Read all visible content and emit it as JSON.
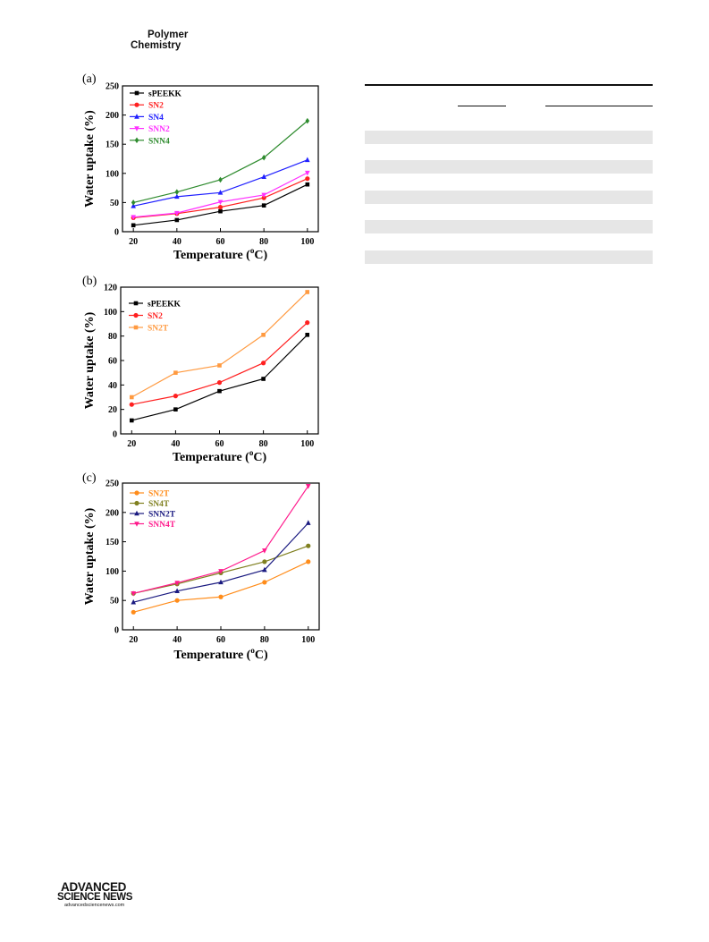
{
  "header": {
    "journal_line1": "Polymer",
    "journal_line2": "Chemistry"
  },
  "footer": {
    "publisher_line1": "ADVANCED",
    "publisher_line2": "SCIENCE NEWS",
    "publisher_url": "advancedsciencenews.com"
  },
  "chart_data": [
    {
      "panel": "(a)",
      "type": "line",
      "xlabel": "Temperature (°C)",
      "ylabel": "Water uptake (%)",
      "x": [
        20,
        40,
        60,
        80,
        100
      ],
      "xlim": [
        15,
        105
      ],
      "ylim": [
        0,
        250
      ],
      "yticks": [
        0,
        50,
        100,
        150,
        200,
        250
      ],
      "grid": false,
      "legend_position": "top-left",
      "series": [
        {
          "name": "sPEEKK",
          "color": "#000000",
          "marker": "square",
          "values": [
            11,
            20,
            35,
            45,
            81
          ]
        },
        {
          "name": "SN2",
          "color": "#ff2020",
          "marker": "circle",
          "values": [
            24,
            31,
            42,
            58,
            91
          ]
        },
        {
          "name": "SN4",
          "color": "#2020ff",
          "marker": "triangle-up",
          "values": [
            44,
            60,
            67,
            94,
            123
          ]
        },
        {
          "name": "SNN2",
          "color": "#ff30ff",
          "marker": "triangle-down",
          "values": [
            25,
            32,
            51,
            63,
            101
          ]
        },
        {
          "name": "SNN4",
          "color": "#2e8b2e",
          "marker": "diamond",
          "values": [
            50,
            68,
            89,
            127,
            190
          ]
        }
      ]
    },
    {
      "panel": "(b)",
      "type": "line",
      "xlabel": "Temperature (°C)",
      "ylabel": "Water uptake (%)",
      "x": [
        20,
        40,
        60,
        80,
        100
      ],
      "xlim": [
        15,
        105
      ],
      "ylim": [
        0,
        120
      ],
      "yticks": [
        0,
        20,
        40,
        60,
        80,
        100,
        120
      ],
      "grid": false,
      "legend_position": "top-left",
      "series": [
        {
          "name": "sPEEKK",
          "color": "#000000",
          "marker": "square",
          "values": [
            11,
            20,
            35,
            45,
            81
          ]
        },
        {
          "name": "SN2",
          "color": "#ff2020",
          "marker": "circle",
          "values": [
            24,
            31,
            42,
            58,
            91
          ]
        },
        {
          "name": "SN2T",
          "color": "#ff9a40",
          "marker": "square",
          "values": [
            30,
            50,
            56,
            81,
            116
          ]
        }
      ]
    },
    {
      "panel": "(c)",
      "type": "line",
      "xlabel": "Temperature (°C)",
      "ylabel": "Water uptake (%)",
      "x": [
        20,
        40,
        60,
        80,
        100
      ],
      "xlim": [
        15,
        105
      ],
      "ylim": [
        0,
        250
      ],
      "yticks": [
        0,
        50,
        100,
        150,
        200,
        250
      ],
      "grid": false,
      "legend_position": "top-left",
      "series": [
        {
          "name": "SN2T",
          "color": "#ff8c1a",
          "marker": "circle",
          "values": [
            30,
            50,
            56,
            81,
            116
          ]
        },
        {
          "name": "SN4T",
          "color": "#808020",
          "marker": "circle",
          "values": [
            62,
            78,
            97,
            116,
            143
          ]
        },
        {
          "name": "SNN2T",
          "color": "#1a1a80",
          "marker": "triangle-up",
          "values": [
            47,
            66,
            81,
            102,
            182
          ]
        },
        {
          "name": "SNN4T",
          "color": "#ff1a8c",
          "marker": "triangle-down",
          "values": [
            62,
            80,
            100,
            135,
            245
          ]
        }
      ]
    }
  ]
}
